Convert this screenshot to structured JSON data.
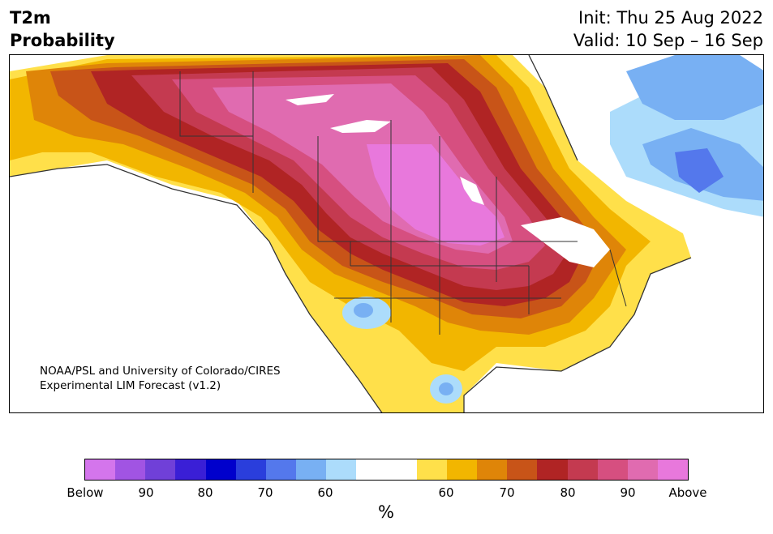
{
  "title": {
    "left_line1": "T2m",
    "left_line2": "Probability",
    "init": "Init: Thu 25 Aug 2022",
    "valid": "Valid: 10 Sep – 16 Sep"
  },
  "credit": {
    "line1": "NOAA/PSL and University of Colorado/CIRES",
    "line2": "Experimental LIM Forecast (v1.2)"
  },
  "colorbar": {
    "unit": "%",
    "colors": [
      "#d475ec",
      "#a154e3",
      "#7040d8",
      "#3a1fd6",
      "#0000cc",
      "#2a3edc",
      "#5478ec",
      "#78b0f3",
      "#acdcfb",
      "#ffffff",
      "#ffffff",
      "#ffe04a",
      "#f2b600",
      "#df8508",
      "#c85418",
      "#b02424",
      "#c43a50",
      "#d64f80",
      "#e06bb0",
      "#e878dc"
    ],
    "tick_labels": [
      "Below",
      "90",
      "80",
      "70",
      "60",
      "60",
      "70",
      "80",
      "90",
      "Above"
    ]
  },
  "map": {
    "land_color": "#ffffff",
    "boundary_color": "#333333"
  }
}
